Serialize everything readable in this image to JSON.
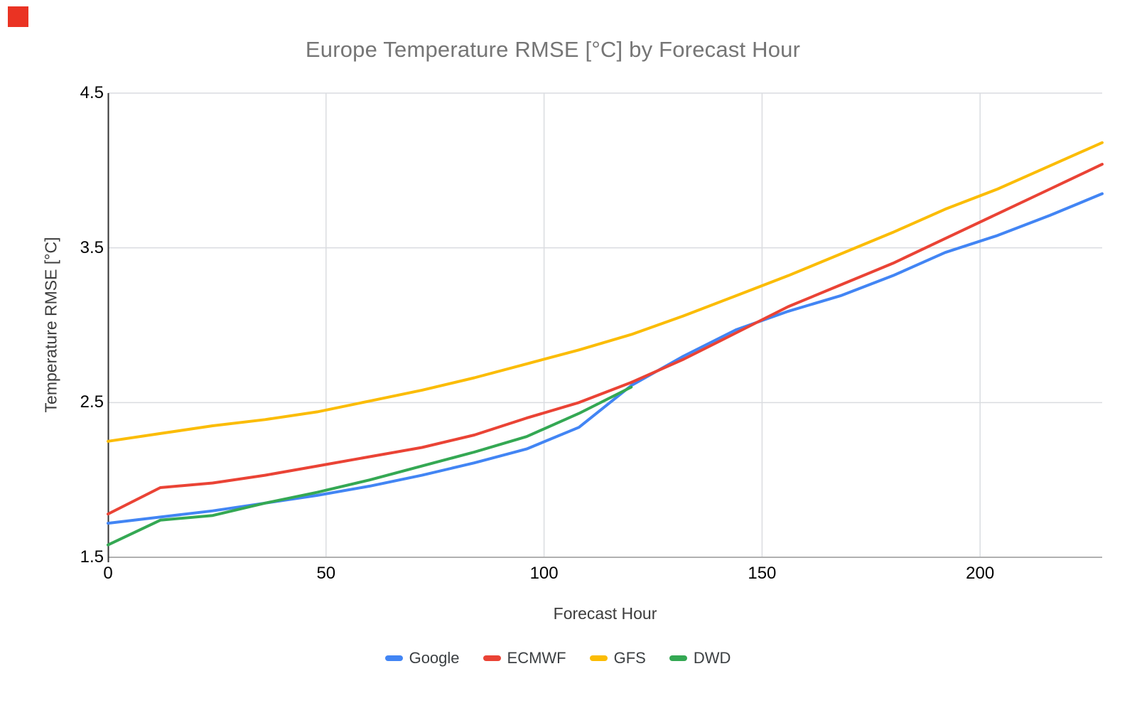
{
  "page": {
    "background": "#ffffff"
  },
  "red_marker": {
    "color": "#ea3323"
  },
  "chart_data": {
    "type": "line",
    "title": "Europe Temperature RMSE [°C] by Forecast Hour",
    "xlabel": "Forecast Hour",
    "ylabel": "Temperature RMSE [°C]",
    "xlim": [
      0,
      228
    ],
    "ylim": [
      1.5,
      4.5
    ],
    "x_ticks": [
      0,
      50,
      100,
      150,
      200
    ],
    "y_ticks": [
      4.5,
      3.5,
      2.5,
      1.5
    ],
    "grid": true,
    "legend_position": "bottom",
    "x": [
      0,
      12,
      24,
      36,
      48,
      60,
      72,
      84,
      96,
      108,
      120,
      132,
      144,
      156,
      168,
      180,
      192,
      204,
      216,
      228
    ],
    "series": [
      {
        "name": "Google",
        "color": "#4285F4",
        "values": [
          1.72,
          1.76,
          1.8,
          1.85,
          1.9,
          1.96,
          2.03,
          2.11,
          2.2,
          2.34,
          2.61,
          2.8,
          2.97,
          3.09,
          3.19,
          3.32,
          3.47,
          3.58,
          3.71,
          3.85
        ]
      },
      {
        "name": "ECMWF",
        "color": "#EA4335",
        "values": [
          1.78,
          1.95,
          1.98,
          2.03,
          2.09,
          2.15,
          2.21,
          2.29,
          2.4,
          2.5,
          2.63,
          2.78,
          2.95,
          3.12,
          3.26,
          3.4,
          3.56,
          3.72,
          3.88,
          4.04
        ]
      },
      {
        "name": "GFS",
        "color": "#FBBC04",
        "values": [
          2.25,
          2.3,
          2.35,
          2.39,
          2.44,
          2.51,
          2.58,
          2.66,
          2.75,
          2.84,
          2.94,
          3.06,
          3.19,
          3.32,
          3.46,
          3.6,
          3.75,
          3.88,
          4.03,
          4.18
        ]
      },
      {
        "name": "DWD",
        "color": "#34A853",
        "values": [
          1.58,
          1.74,
          1.77,
          1.85,
          1.92,
          2.0,
          2.09,
          2.18,
          2.28,
          2.43,
          2.6,
          null,
          null,
          null,
          null,
          null,
          null,
          null,
          null,
          null
        ]
      }
    ],
    "colors": {
      "grid": "#dadce0",
      "y_axis": "#333333",
      "x_axis": "#b0b0b0",
      "tick_label": "#000000",
      "axis_title": "#3c3c3c",
      "legend_label": "#3c4043",
      "title": "#757575"
    }
  }
}
